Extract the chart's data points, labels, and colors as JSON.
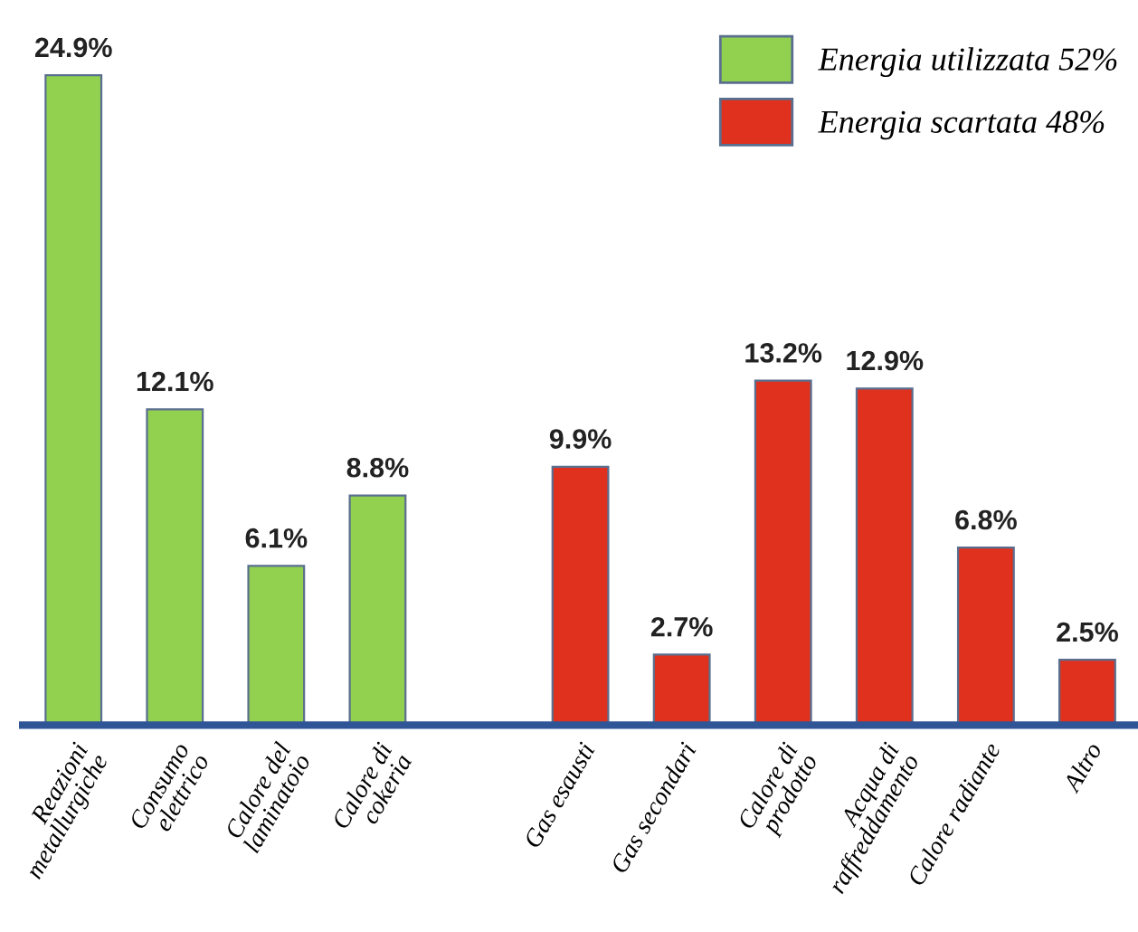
{
  "chart_data": {
    "type": "bar",
    "categories": [
      "Reazioni\nmetallurgiche",
      "Consumo\nelettrico",
      "Calore del\nlaminatoio",
      "Calore di\ncokeria",
      null,
      "Gas esausti",
      "Gas secondari",
      "Calore di\nprodotto",
      "Acqua di\nraffreddamento",
      "Calore radiante",
      "Altro"
    ],
    "series": [
      {
        "name": "Energia utilizzata 52%",
        "color": "#92d050",
        "values": [
          24.9,
          12.1,
          6.1,
          8.8,
          null,
          null,
          null,
          null,
          null,
          null,
          null
        ],
        "value_labels": [
          "24.9%",
          "12.1%",
          "6.1%",
          "8.8%",
          null,
          null,
          null,
          null,
          null,
          null,
          null
        ]
      },
      {
        "name": "Energia scartata 48%",
        "color": "#e0301e",
        "values": [
          null,
          null,
          null,
          null,
          null,
          9.9,
          2.7,
          13.2,
          12.9,
          6.8,
          2.5
        ],
        "value_labels": [
          null,
          null,
          null,
          null,
          null,
          "9.9%",
          "2.7%",
          "13.2%",
          "12.9%",
          "6.8%",
          "2.5%"
        ]
      }
    ],
    "legend": "top right"
  }
}
